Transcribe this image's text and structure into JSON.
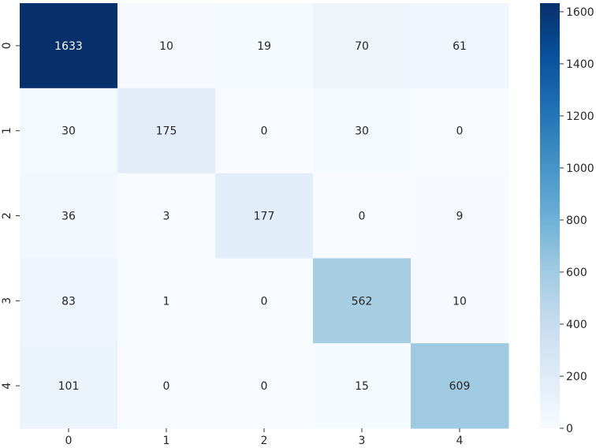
{
  "chart_data": {
    "type": "heatmap",
    "title": "",
    "xlabel": "",
    "ylabel": "",
    "x_categories": [
      "0",
      "1",
      "2",
      "3",
      "4"
    ],
    "y_categories": [
      "0",
      "1",
      "2",
      "3",
      "4"
    ],
    "values": [
      [
        1633,
        10,
        19,
        70,
        61
      ],
      [
        30,
        175,
        0,
        30,
        0
      ],
      [
        36,
        3,
        177,
        0,
        9
      ],
      [
        83,
        1,
        0,
        562,
        10
      ],
      [
        101,
        0,
        0,
        15,
        609
      ]
    ],
    "colormap": "Blues",
    "color_range": [
      0,
      1633
    ],
    "colorbar": {
      "ticks": [
        "0",
        "200",
        "400",
        "600",
        "800",
        "1000",
        "1200",
        "1400",
        "1600"
      ],
      "tick_values": [
        0,
        200,
        400,
        600,
        800,
        1000,
        1200,
        1400,
        1600
      ]
    },
    "annotations": true,
    "grid": false
  }
}
